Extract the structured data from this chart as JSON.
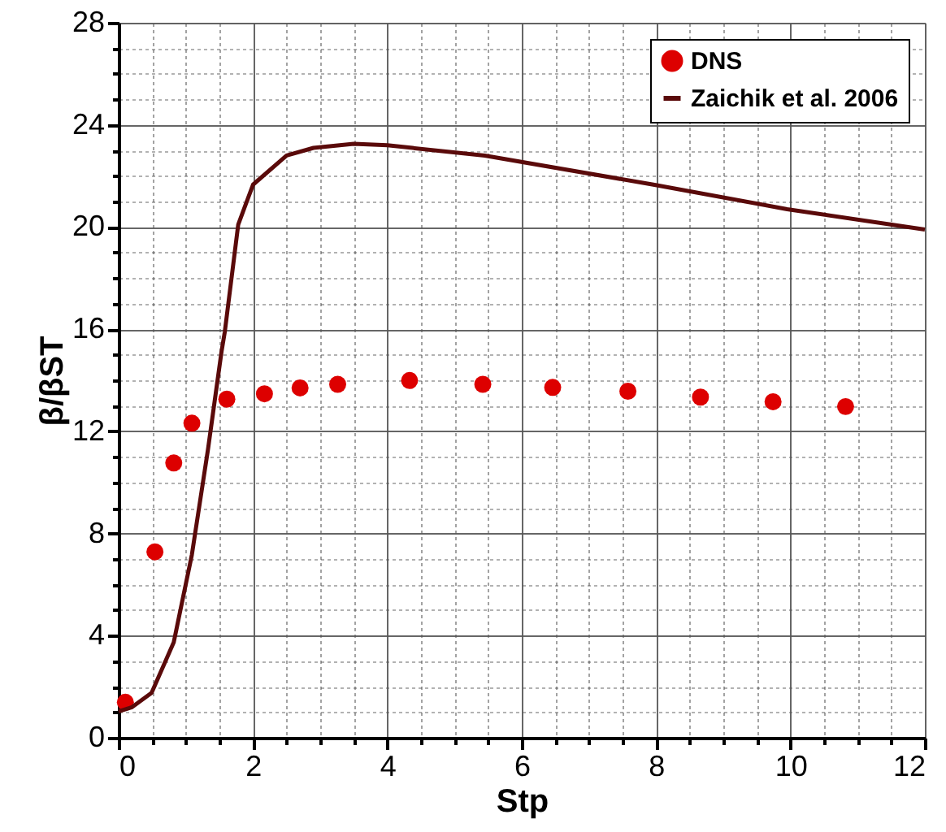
{
  "chart_data": {
    "type": "scatter",
    "xlabel": "Stp",
    "ylabel": "β/βST",
    "xlim": [
      0,
      12
    ],
    "ylim": [
      0,
      28
    ],
    "xticks": [
      0,
      {
        "value": 0.5,
        "label": null
      },
      {
        "value": 1,
        "label": null
      },
      {
        "value": 1.5,
        "label": null
      },
      2,
      {
        "value": 2.5,
        "label": null
      },
      {
        "value": 3,
        "label": null
      },
      {
        "value": 3.5,
        "label": null
      },
      4,
      {
        "value": 4.5,
        "label": null
      },
      {
        "value": 5,
        "label": null
      },
      {
        "value": 5.5,
        "label": null
      },
      6,
      {
        "value": 6.5,
        "label": null
      },
      {
        "value": 7,
        "label": null
      },
      {
        "value": 7.5,
        "label": null
      },
      8,
      {
        "value": 8.5,
        "label": null
      },
      {
        "value": 9,
        "label": null
      },
      {
        "value": 9.5,
        "label": null
      },
      10,
      {
        "value": 10.5,
        "label": null
      },
      {
        "value": 11,
        "label": null
      },
      {
        "value": 11.5,
        "label": null
      },
      12
    ],
    "yticks": [
      0,
      {
        "value": 1,
        "label": null
      },
      {
        "value": 2,
        "label": null
      },
      {
        "value": 3,
        "label": null
      },
      4,
      {
        "value": 5,
        "label": null
      },
      {
        "value": 6,
        "label": null
      },
      {
        "value": 7,
        "label": null
      },
      8,
      {
        "value": 9,
        "label": null
      },
      {
        "value": 10,
        "label": null
      },
      {
        "value": 11,
        "label": null
      },
      12,
      {
        "value": 13,
        "label": null
      },
      {
        "value": 14,
        "label": null
      },
      {
        "value": 15,
        "label": null
      },
      16,
      {
        "value": 17,
        "label": null
      },
      {
        "value": 18,
        "label": null
      },
      {
        "value": 19,
        "label": null
      },
      20,
      {
        "value": 21,
        "label": null
      },
      {
        "value": 22,
        "label": null
      },
      {
        "value": 23,
        "label": null
      },
      24,
      {
        "value": 25,
        "label": null
      },
      {
        "value": 26,
        "label": null
      },
      {
        "value": 27,
        "label": null
      },
      28
    ],
    "grid": true,
    "legend": "top right",
    "series": [
      {
        "name": "DNS",
        "marker": "circle",
        "color": "#dd0000",
        "x": [
          0.1,
          0.54,
          0.82,
          1.09,
          1.61,
          2.17,
          2.7,
          3.26,
          4.33,
          5.42,
          6.46,
          7.58,
          8.66,
          9.74,
          10.82
        ],
        "values": [
          1.39,
          7.28,
          10.76,
          12.32,
          13.26,
          13.47,
          13.7,
          13.84,
          13.99,
          13.84,
          13.72,
          13.57,
          13.34,
          13.16,
          12.97
        ]
      },
      {
        "name": "Zaichik et al. 2006",
        "type": "line",
        "line_style": "solid",
        "color": "#5a0a0a",
        "x": [
          0,
          0.2,
          0.49,
          0.82,
          1.09,
          1.33,
          1.53,
          1.58,
          1.78,
          2.0,
          2.5,
          2.9,
          3.5,
          4.0,
          5.45,
          7.96,
          9.95,
          12
        ],
        "values": [
          1.03,
          1.2,
          1.76,
          3.74,
          7.17,
          11.3,
          15.1,
          15.9,
          20.1,
          21.66,
          22.8,
          23.1,
          23.26,
          23.2,
          22.8,
          21.66,
          20.7,
          19.9
        ]
      }
    ]
  }
}
